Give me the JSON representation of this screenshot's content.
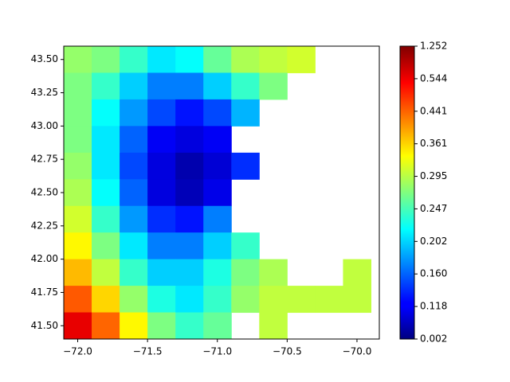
{
  "chart_data": {
    "type": "scatter",
    "colormap": "jet",
    "marker": "square",
    "xlim": [
      -72.1,
      -69.84
    ],
    "ylim": [
      41.4,
      43.6
    ],
    "xticks": [
      {
        "value": -72.0,
        "label": "−72.0"
      },
      {
        "value": -71.5,
        "label": "−71.5"
      },
      {
        "value": -71.0,
        "label": "−71.0"
      },
      {
        "value": -70.5,
        "label": "−70.5"
      },
      {
        "value": -70.0,
        "label": "−70.0"
      }
    ],
    "yticks": [
      {
        "value": 41.5,
        "label": "41.50"
      },
      41.75,
      {
        "value": 42.0,
        "label": "42.00"
      },
      42.25,
      {
        "value": 42.5,
        "label": "42.50"
      },
      42.75,
      {
        "value": 43.0,
        "label": "43.00"
      },
      43.25,
      {
        "value": 43.5,
        "label": "43.50"
      }
    ],
    "colorbar_ticks": [
      0.002,
      0.118,
      {
        "value": 0.16,
        "label": "0.160"
      },
      0.202,
      0.247,
      0.295,
      0.361,
      0.441,
      0.544,
      1.252
    ],
    "x": [
      -72,
      -71.8,
      -71.6,
      -71.4,
      -71.2,
      -71,
      -70.8,
      -70.6,
      -70.4,
      -72,
      -71.8,
      -71.6,
      -71.4,
      -71.2,
      -71,
      -70.8,
      -70.6,
      -72,
      -71.8,
      -71.6,
      -71.4,
      -71.2,
      -71,
      -70.8,
      -72,
      -71.8,
      -71.6,
      -71.4,
      -71.2,
      -71,
      -72,
      -71.8,
      -71.6,
      -71.4,
      -71.2,
      -71,
      -70.8,
      -72,
      -71.8,
      -71.6,
      -71.4,
      -71.2,
      -71,
      -72,
      -71.8,
      -71.6,
      -71.4,
      -71.2,
      -71,
      -72,
      -71.8,
      -71.6,
      -71.4,
      -71.2,
      -71,
      -70.8,
      -72,
      -71.8,
      -71.6,
      -71.4,
      -71.2,
      -71,
      -70.8,
      -70.6,
      -70,
      -72,
      -71.8,
      -71.6,
      -71.4,
      -71.2,
      -71,
      -70.8,
      -70.6,
      -70.4,
      -70.2,
      -70,
      -72,
      -71.8,
      -71.6,
      -71.4,
      -71.2,
      -71,
      -70.6
    ],
    "y": [
      43.5,
      43.5,
      43.5,
      43.5,
      43.5,
      43.5,
      43.5,
      43.5,
      43.5,
      43.3,
      43.3,
      43.3,
      43.3,
      43.3,
      43.3,
      43.3,
      43.3,
      43.1,
      43.1,
      43.1,
      43.1,
      43.1,
      43.1,
      43.1,
      42.9,
      42.9,
      42.9,
      42.9,
      42.9,
      42.9,
      42.7,
      42.7,
      42.7,
      42.7,
      42.7,
      42.7,
      42.7,
      42.5,
      42.5,
      42.5,
      42.5,
      42.5,
      42.5,
      42.3,
      42.3,
      42.3,
      42.3,
      42.3,
      42.3,
      42.1,
      42.1,
      42.1,
      42.1,
      42.1,
      42.1,
      42.1,
      41.9,
      41.9,
      41.9,
      41.9,
      41.9,
      41.9,
      41.9,
      41.9,
      41.9,
      41.7,
      41.7,
      41.7,
      41.7,
      41.7,
      41.7,
      41.7,
      41.7,
      41.7,
      41.7,
      41.7,
      41.5,
      41.5,
      41.5,
      41.5,
      41.5,
      41.5,
      41.5
    ],
    "values": [
      0.28,
      0.27,
      0.24,
      0.21,
      0.22,
      0.26,
      0.29,
      0.3,
      0.31,
      0.27,
      0.24,
      0.2,
      0.17,
      0.17,
      0.2,
      0.24,
      0.27,
      0.27,
      0.22,
      0.18,
      0.15,
      0.13,
      0.15,
      0.19,
      0.27,
      0.21,
      0.16,
      0.12,
      0.1,
      0.12,
      0.28,
      0.21,
      0.15,
      0.1,
      0.05,
      0.09,
      0.14,
      0.29,
      0.22,
      0.16,
      0.1,
      0.06,
      0.11,
      0.31,
      0.24,
      0.18,
      0.14,
      0.13,
      0.17,
      0.34,
      0.27,
      0.21,
      0.17,
      0.17,
      0.2,
      0.24,
      0.38,
      0.3,
      0.24,
      0.2,
      0.2,
      0.23,
      0.27,
      0.29,
      0.3,
      0.45,
      0.36,
      0.28,
      0.23,
      0.21,
      0.24,
      0.28,
      0.3,
      0.3,
      0.3,
      0.3,
      0.6,
      0.44,
      0.34,
      0.27,
      0.24,
      0.26,
      0.3
    ]
  }
}
